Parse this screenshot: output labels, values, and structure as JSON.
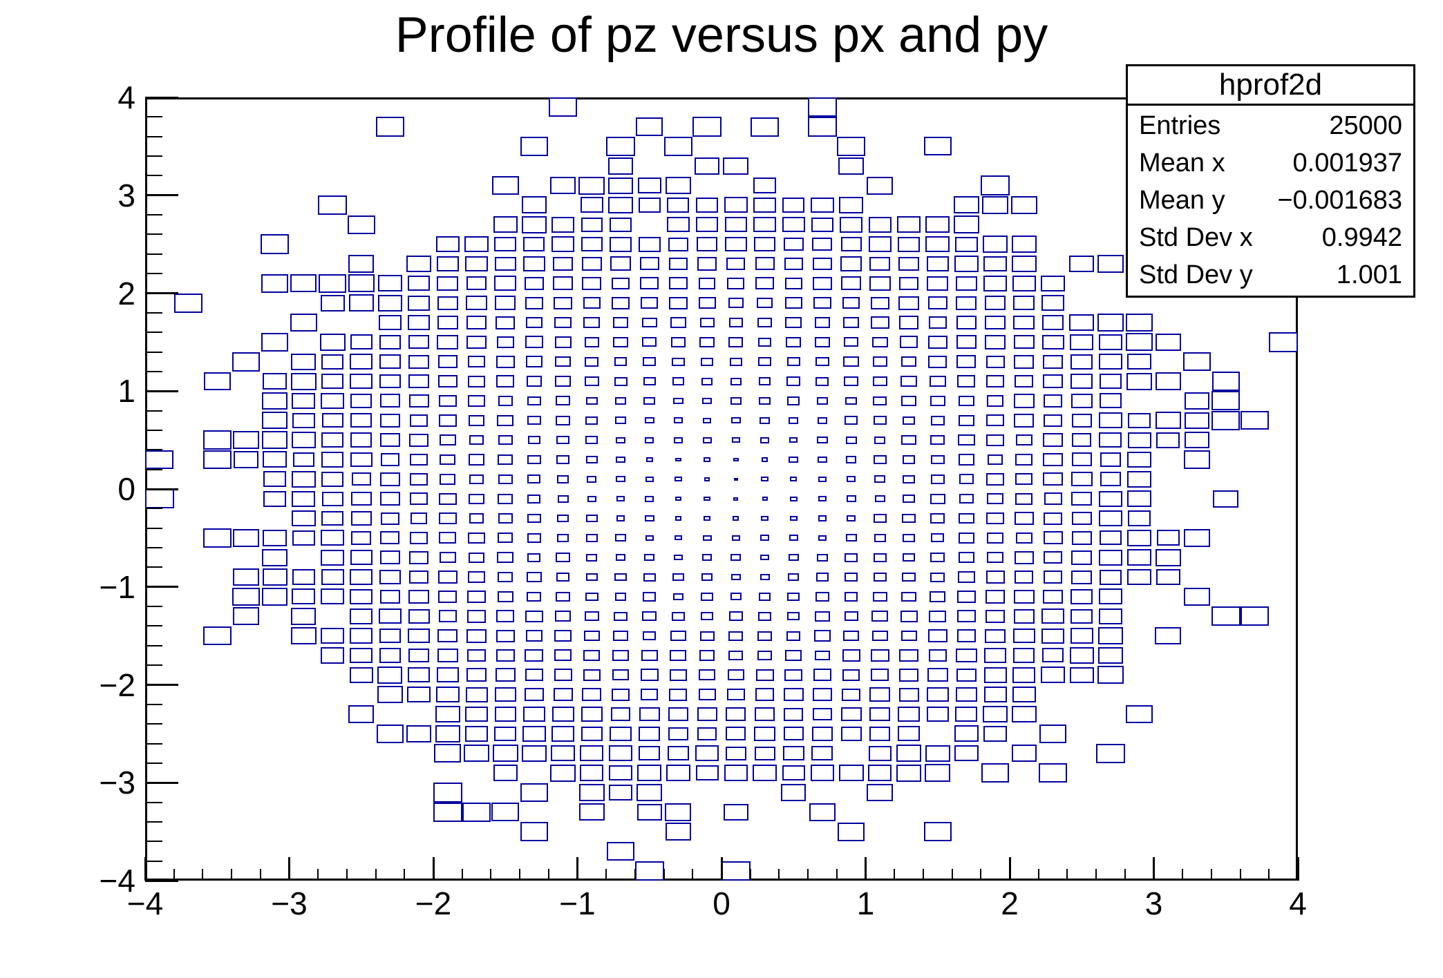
{
  "title": "Profile of pz versus px and py",
  "stats_box": {
    "title": "hprof2d",
    "rows": [
      {
        "label": "Entries",
        "value": "25000"
      },
      {
        "label": "Mean x",
        "value": "0.001937"
      },
      {
        "label": "Mean y",
        "value": "−0.001683"
      },
      {
        "label": "Std Dev x",
        "value": "0.9942"
      },
      {
        "label": "Std Dev y",
        "value": "1.001"
      }
    ]
  },
  "chart_data": {
    "type": "heatmap",
    "subtype": "root-tprofile2d-box-plot",
    "title": "Profile of pz versus px and py",
    "histogram_name": "hprof2d",
    "stats": {
      "entries": 25000,
      "mean_x": 0.001937,
      "mean_y": -0.001683,
      "std_dev_x": 0.9942,
      "std_dev_y": 1.001
    },
    "x_axis": {
      "min": -4,
      "max": 4,
      "major_ticks": [
        -4,
        -3,
        -2,
        -1,
        0,
        1,
        2,
        3,
        4
      ],
      "minor_divisions_per_major": 5
    },
    "y_axis": {
      "min": -4,
      "max": 4,
      "major_ticks": [
        -4,
        -3,
        -2,
        -1,
        0,
        1,
        2,
        3,
        4
      ],
      "minor_divisions_per_major": 5
    },
    "bins": {
      "nx": 40,
      "ny": 40,
      "x_bin_width": 0.2,
      "y_bin_width": 0.2
    },
    "box_color": "#0000a0",
    "grid": false,
    "legend": false,
    "content_model": "2D Gaussian occupancy (sigma=1, 25000 entries); bin content = mean pz ≈ px²+py²; box side proportional to sqrt(content), largest near r≈3.8, smallest at center",
    "render_model": {
      "seed": 424242,
      "sigma": 1.0,
      "lambda0_per_bin": 191.0,
      "size_base": 0.16,
      "size_slope": 0.84,
      "r_norm": 3.8,
      "size_noise": 0.05,
      "min_frac": 0.11,
      "max_frac": 1.0
    }
  }
}
